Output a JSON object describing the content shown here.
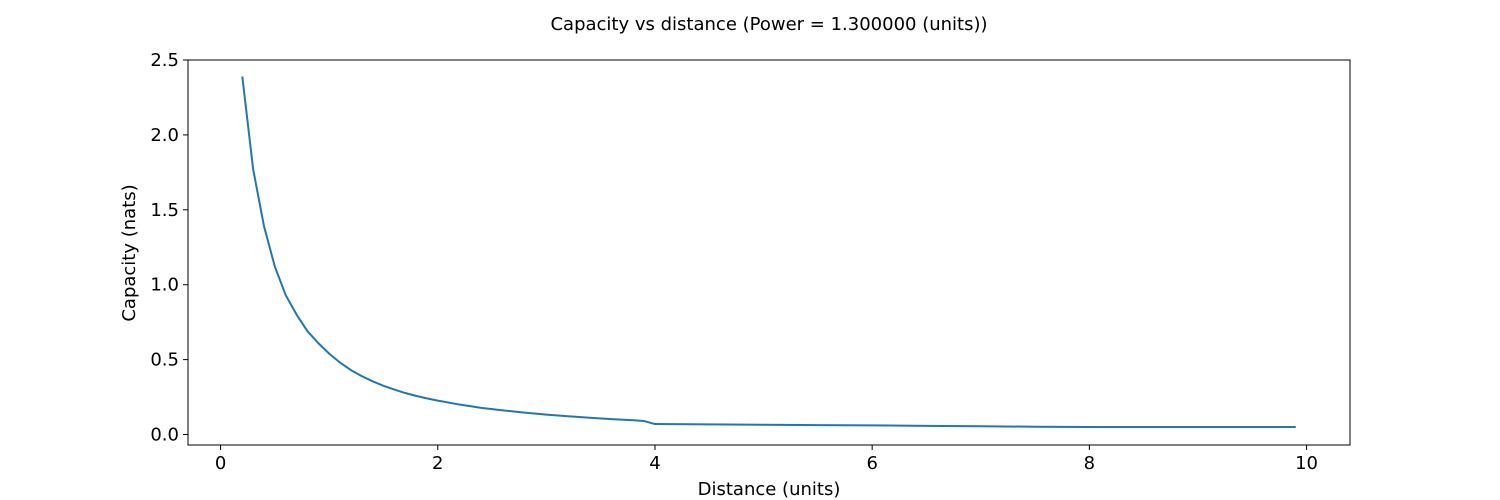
{
  "chart_data": {
    "type": "line",
    "title": "Capacity vs distance (Power = 1.300000 (units))",
    "xlabel": "Distance (units)",
    "ylabel": "Capacity (nats)",
    "xlim": [
      -0.3,
      10.4
    ],
    "ylim": [
      -0.07,
      2.5
    ],
    "xticks": [
      0,
      2,
      4,
      6,
      8,
      10
    ],
    "yticks": [
      0.0,
      0.5,
      1.0,
      1.5,
      2.0,
      2.5
    ],
    "xtick_labels": [
      "0",
      "2",
      "4",
      "6",
      "8",
      "10"
    ],
    "ytick_labels": [
      "0.0",
      "0.5",
      "1.0",
      "1.5",
      "2.0",
      "2.5"
    ],
    "grid": false,
    "line_color": "#1f77b4",
    "series": [
      {
        "x": [
          0.2,
          0.3,
          0.4,
          0.5,
          0.6,
          0.7,
          0.8,
          0.9,
          1.0,
          1.1,
          1.2,
          1.3,
          1.4,
          1.5,
          1.6,
          1.7,
          1.8,
          1.9,
          2.0,
          2.2,
          2.4,
          2.6,
          2.8,
          3.0,
          3.2,
          3.4,
          3.6,
          3.8,
          3.9,
          4.0,
          4.5,
          5.0,
          5.5,
          6.0,
          6.5,
          7.0,
          7.5,
          8.0,
          8.5,
          9.0,
          9.5,
          9.9
        ],
        "y": [
          2.39,
          1.77,
          1.39,
          1.12,
          0.93,
          0.8,
          0.69,
          0.61,
          0.54,
          0.48,
          0.43,
          0.39,
          0.355,
          0.325,
          0.3,
          0.277,
          0.258,
          0.241,
          0.226,
          0.2,
          0.178,
          0.161,
          0.146,
          0.133,
          0.122,
          0.112,
          0.103,
          0.095,
          0.09,
          0.07,
          0.068,
          0.065,
          0.063,
          0.061,
          0.058,
          0.055,
          0.052,
          0.05,
          0.05,
          0.05,
          0.05,
          0.05
        ]
      }
    ]
  }
}
